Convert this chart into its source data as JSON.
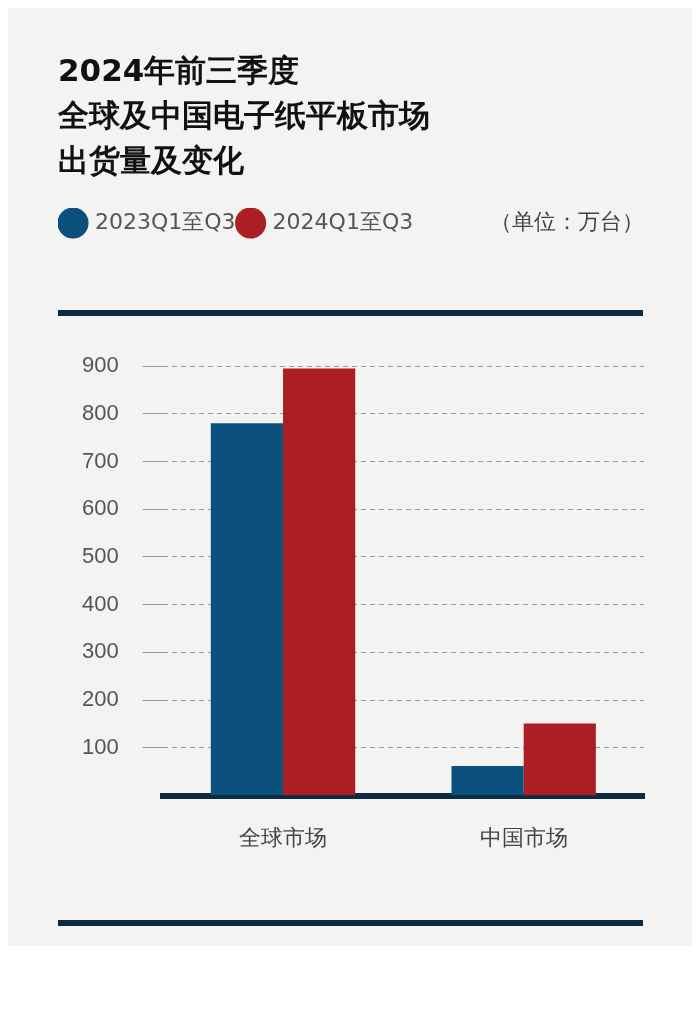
{
  "chart_data": {
    "type": "bar",
    "title": "2024年前三季度全球及中国电子纸平板市场出货量及变化",
    "annotations": [
      "（单位：万台）"
    ],
    "categories": [
      "全球市场",
      "中国市场"
    ],
    "series": [
      {
        "name": "2023Q1至Q3",
        "color": "#0b4f7c",
        "values": [
          780,
          62
        ]
      },
      {
        "name": "2024Q1至Q3",
        "color": "#ab1e24",
        "values": [
          895,
          151
        ]
      }
    ],
    "ylim": [
      0,
      900
    ],
    "yticks": [
      100,
      200,
      300,
      400,
      500,
      600,
      700,
      800,
      900
    ],
    "grid": "y",
    "legend": "top left"
  }
}
